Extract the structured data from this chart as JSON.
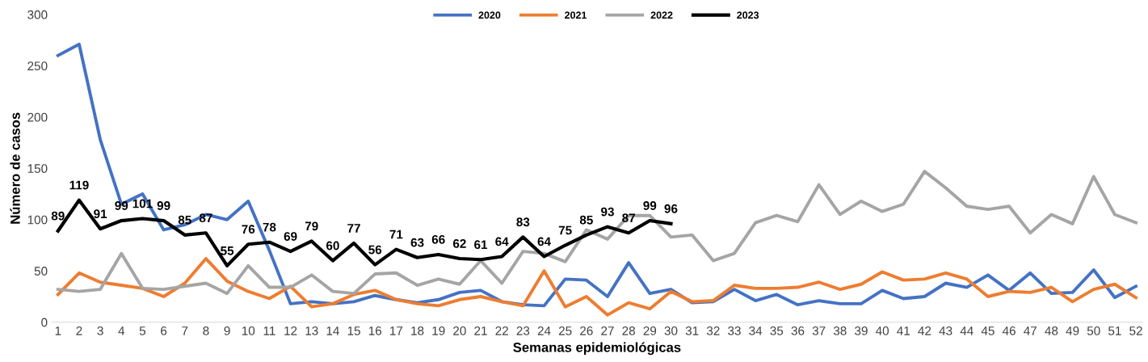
{
  "chart_data": {
    "type": "line",
    "xlabel": "Semanas epidemiológicas",
    "ylabel": "Número de casos",
    "categories": [
      "1",
      "2",
      "3",
      "4",
      "5",
      "6",
      "7",
      "8",
      "9",
      "10",
      "11",
      "12",
      "13",
      "14",
      "15",
      "16",
      "17",
      "18",
      "19",
      "20",
      "21",
      "22",
      "23",
      "24",
      "25",
      "26",
      "27",
      "28",
      "29",
      "30",
      "31",
      "32",
      "33",
      "34",
      "35",
      "36",
      "37",
      "38",
      "39",
      "40",
      "41",
      "42",
      "43",
      "44",
      "45",
      "46",
      "47",
      "48",
      "49",
      "50",
      "51",
      "52"
    ],
    "ylim": [
      0,
      300
    ],
    "yticks": [
      0,
      50,
      100,
      150,
      200,
      250,
      300
    ],
    "grid": false,
    "legend": "top",
    "marker": "none",
    "line_style": "solid",
    "series": [
      {
        "name": "2020",
        "color": "#4472c4",
        "values": [
          260,
          271,
          178,
          115,
          125,
          90,
          95,
          105,
          100,
          118,
          70,
          18,
          20,
          18,
          20,
          26,
          22,
          19,
          22,
          29,
          31,
          20,
          17,
          16,
          42,
          41,
          25,
          58,
          28,
          32,
          19,
          20,
          32,
          21,
          27,
          17,
          21,
          18,
          18,
          31,
          23,
          25,
          38,
          34,
          46,
          31,
          48,
          28,
          29,
          51,
          24,
          35
        ]
      },
      {
        "name": "2021",
        "color": "#ed7d31",
        "values": [
          27,
          48,
          39,
          36,
          33,
          25,
          38,
          62,
          40,
          30,
          23,
          35,
          15,
          18,
          27,
          31,
          22,
          18,
          16,
          22,
          25,
          20,
          16,
          50,
          15,
          25,
          7,
          19,
          13,
          30,
          20,
          21,
          36,
          33,
          33,
          34,
          39,
          32,
          37,
          49,
          41,
          42,
          48,
          42,
          25,
          30,
          29,
          34,
          20,
          32,
          37,
          24
        ]
      },
      {
        "name": "2022",
        "color": "#a5a5a5",
        "values": [
          32,
          30,
          32,
          67,
          33,
          32,
          35,
          38,
          28,
          55,
          34,
          34,
          46,
          30,
          28,
          47,
          48,
          36,
          42,
          37,
          60,
          38,
          69,
          67,
          59,
          90,
          81,
          104,
          104,
          83,
          85,
          60,
          67,
          97,
          104,
          98,
          134,
          105,
          118,
          108,
          115,
          147,
          131,
          113,
          110,
          113,
          87,
          105,
          96,
          142,
          105,
          97
        ]
      },
      {
        "name": "2023",
        "color": "#000000",
        "values": [
          89,
          119,
          91,
          99,
          101,
          99,
          85,
          87,
          55,
          76,
          78,
          69,
          79,
          60,
          77,
          56,
          71,
          63,
          66,
          62,
          61,
          64,
          83,
          64,
          75,
          85,
          93,
          87,
          99,
          96,
          null,
          null,
          null,
          null,
          null,
          null,
          null,
          null,
          null,
          null,
          null,
          null,
          null,
          null,
          null,
          null,
          null,
          null,
          null,
          null,
          null,
          null
        ],
        "value_labels": [
          "89",
          "119",
          "91",
          "99",
          "101",
          "99",
          "85",
          "87",
          "55",
          "76",
          "78",
          "69",
          "79",
          "60",
          "77",
          "56",
          "71",
          "63",
          "66",
          "62",
          "61",
          "64",
          "83",
          "64",
          "75",
          "85",
          "93",
          "87",
          "99",
          "96",
          null,
          null,
          null,
          null,
          null,
          null,
          null,
          null,
          null,
          null,
          null,
          null,
          null,
          null,
          null,
          null,
          null,
          null,
          null,
          null,
          null,
          null
        ]
      }
    ]
  }
}
